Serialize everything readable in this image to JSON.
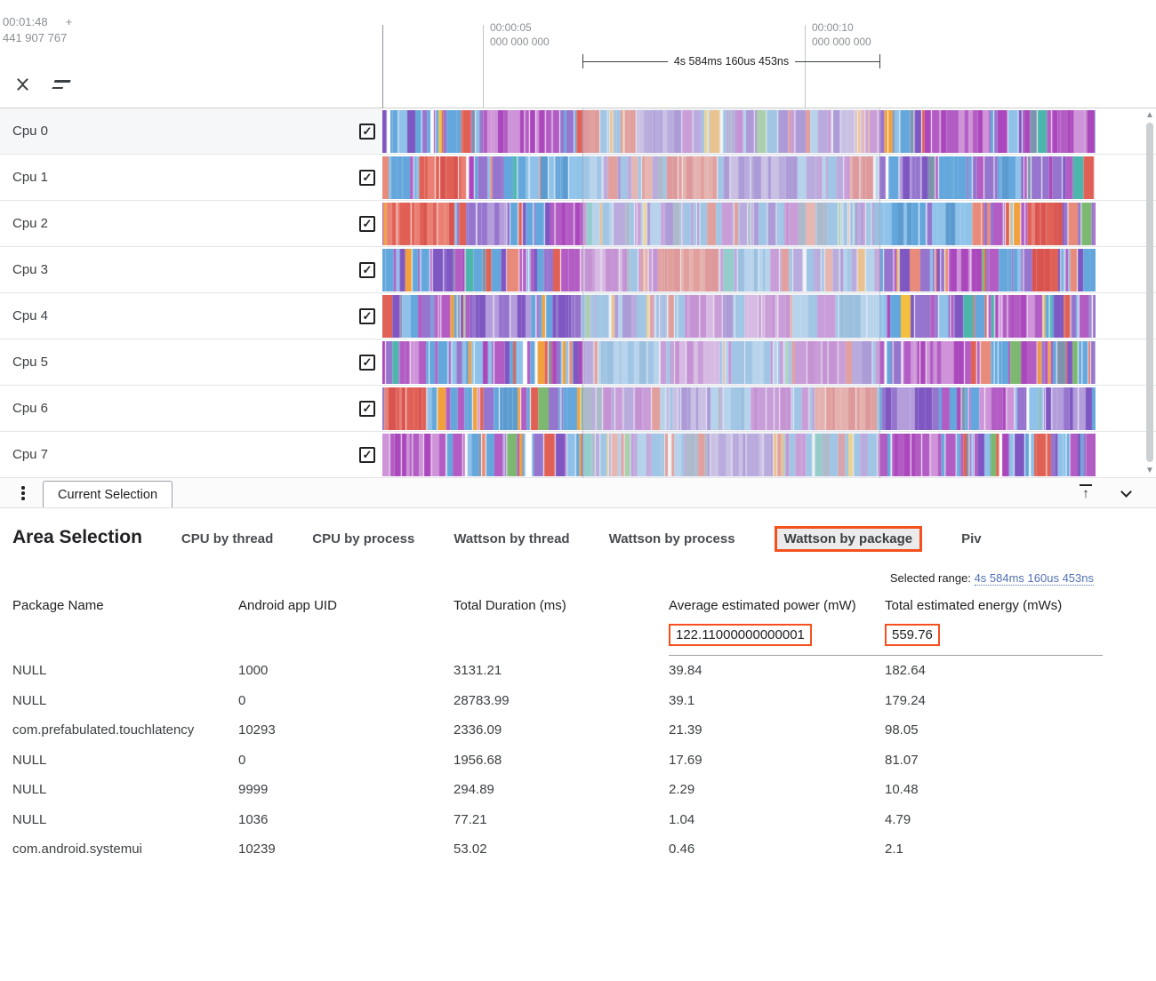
{
  "colors": {
    "accent": "#f4511e"
  },
  "ruler": {
    "cursor_line1": "00:01:48",
    "cursor_plus": "+",
    "cursor_line2": "441 907 767",
    "ticks": [
      {
        "time": "00:00:05",
        "sub": "000 000 000"
      },
      {
        "time": "00:00:10",
        "sub": "000 000 000"
      }
    ],
    "bracket_label": "4s 584ms 160us 453ns"
  },
  "tracks": {
    "rows": [
      {
        "name": "Cpu 0",
        "checked": true,
        "seed": 17
      },
      {
        "name": "Cpu 1",
        "checked": true,
        "seed": 42
      },
      {
        "name": "Cpu 2",
        "checked": true,
        "seed": 77
      },
      {
        "name": "Cpu 3",
        "checked": true,
        "seed": 9
      },
      {
        "name": "Cpu 4",
        "checked": true,
        "seed": 133
      },
      {
        "name": "Cpu 5",
        "checked": true,
        "seed": 58
      },
      {
        "name": "Cpu 6",
        "checked": true,
        "seed": 201
      },
      {
        "name": "Cpu 7",
        "checked": true,
        "seed": 86
      }
    ],
    "palette": [
      {
        "c": "#64a7dc",
        "w": 26
      },
      {
        "c": "#8fc1e9",
        "w": 7
      },
      {
        "c": "#9575cd",
        "w": 16
      },
      {
        "c": "#7e57c2",
        "w": 9
      },
      {
        "c": "#b25cc4",
        "w": 11
      },
      {
        "c": "#ab47bc",
        "w": 5
      },
      {
        "c": "#e06055",
        "w": 8
      },
      {
        "c": "#e98b7b",
        "w": 3
      },
      {
        "c": "#f0a13c",
        "w": 3.5
      },
      {
        "c": "#f3c13f",
        "w": 2
      },
      {
        "c": "#7d93ad",
        "w": 4.5
      },
      {
        "c": "#4db6ac",
        "w": 1.5
      },
      {
        "c": "#7cb86f",
        "w": 1.5
      }
    ],
    "families": [
      [
        "#e06055",
        "#e98073",
        "#d9534f"
      ],
      [
        "#9575cd",
        "#7e57c2",
        "#b39ddb"
      ],
      [
        "#64a7dc",
        "#90c3ea",
        "#5b9bd0"
      ],
      [
        "#ab47bc",
        "#ce93d8",
        "#b25cc4"
      ]
    ]
  },
  "panel": {
    "tab_label": "Current Selection"
  },
  "detail": {
    "title": "Area Selection",
    "tabs": [
      {
        "label": "CPU by thread",
        "selected": false
      },
      {
        "label": "CPU by process",
        "selected": false
      },
      {
        "label": "Wattson by thread",
        "selected": false
      },
      {
        "label": "Wattson by process",
        "selected": false
      },
      {
        "label": "Wattson by package",
        "selected": true
      },
      {
        "label": "Piv",
        "selected": false
      }
    ],
    "selected_range": {
      "label": "Selected range:",
      "value": "4s 584ms 160us 453ns"
    },
    "table": {
      "columns": [
        "Package Name",
        "Android app UID",
        "Total Duration (ms)",
        "Average estimated power (mW)",
        "Total estimated energy (mWs)"
      ],
      "summary": {
        "power": "122.11000000000001",
        "energy": "559.76"
      },
      "rows": [
        [
          "NULL",
          "1000",
          "3131.21",
          "39.84",
          "182.64"
        ],
        [
          "NULL",
          "0",
          "28783.99",
          "39.1",
          "179.24"
        ],
        [
          "com.prefabulated.touchlatency",
          "10293",
          "2336.09",
          "21.39",
          "98.05"
        ],
        [
          "NULL",
          "0",
          "1956.68",
          "17.69",
          "81.07"
        ],
        [
          "NULL",
          "9999",
          "294.89",
          "2.29",
          "10.48"
        ],
        [
          "NULL",
          "1036",
          "77.21",
          "1.04",
          "4.79"
        ],
        [
          "com.android.systemui",
          "10239",
          "53.02",
          "0.46",
          "2.1"
        ]
      ]
    }
  }
}
